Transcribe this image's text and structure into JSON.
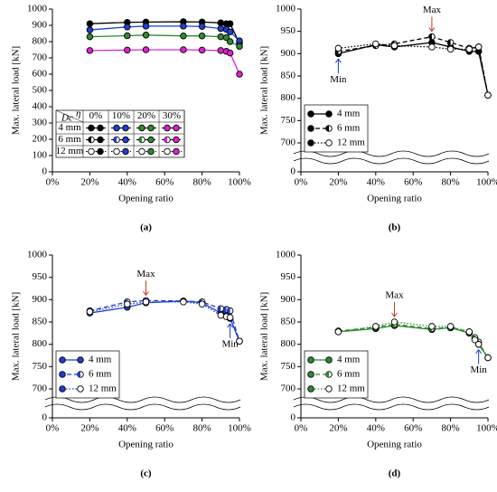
{
  "chart_data": [
    {
      "type": "line",
      "label": "(a)",
      "ylabel": "Max. lateral load [kN]",
      "xlabel": "Opening ratio",
      "xlim": [
        0,
        100
      ],
      "ylim": [
        0,
        1000
      ],
      "xticks": [
        {
          "value": 0,
          "label": "0%"
        },
        {
          "value": 20,
          "label": "20%"
        },
        {
          "value": 40,
          "label": "40%"
        },
        {
          "value": 60,
          "label": "60%"
        },
        {
          "value": 80,
          "label": "80%"
        },
        {
          "value": 100,
          "label": "100%"
        }
      ],
      "yticks": [
        0,
        100,
        200,
        300,
        400,
        500,
        600,
        700,
        800,
        900,
        1000
      ],
      "x": [
        20,
        40,
        50,
        70,
        80,
        90,
        93,
        95,
        100
      ],
      "legend_row_header": "Dc",
      "legend_col_header": "η",
      "legend_rows": [
        {
          "name": "4 mm",
          "dash": "solid",
          "marker": "filled"
        },
        {
          "name": "6 mm",
          "dash": "dashed",
          "marker": "half"
        },
        {
          "name": "12 mm",
          "dash": "dotted",
          "marker": "open"
        }
      ],
      "series": [
        {
          "name": "0%",
          "color": "#000000",
          "dash": "solid",
          "marker": "filled",
          "values": [
            910,
            918,
            920,
            922,
            920,
            915,
            910,
            910,
            790
          ]
        },
        {
          "name": "10%",
          "color": "#1f3fd0",
          "dash": "solid",
          "marker": "filled",
          "values": [
            872,
            890,
            895,
            895,
            893,
            880,
            875,
            860,
            805
          ]
        },
        {
          "name": "20%",
          "color": "#2e8b2e",
          "dash": "solid",
          "marker": "filled",
          "values": [
            830,
            836,
            840,
            835,
            835,
            830,
            825,
            800,
            770
          ]
        },
        {
          "name": "30%",
          "color": "#e020d0",
          "dash": "solid",
          "marker": "filled",
          "values": [
            745,
            748,
            750,
            750,
            748,
            745,
            740,
            730,
            600
          ]
        }
      ]
    },
    {
      "type": "line",
      "label": "(b)",
      "ylabel": "Max. lateral load [kN]",
      "xlabel": "Opening ratio",
      "xlim": [
        0,
        100
      ],
      "ylim": [
        0,
        1000
      ],
      "axis_break": [
        0,
        700
      ],
      "xticks": [
        {
          "value": 0,
          "label": "0%"
        },
        {
          "value": 20,
          "label": "20%"
        },
        {
          "value": 40,
          "label": "40%"
        },
        {
          "value": 60,
          "label": "60%"
        },
        {
          "value": 80,
          "label": "80%"
        },
        {
          "value": 100,
          "label": "100%"
        }
      ],
      "yticks": [
        0,
        700,
        750,
        800,
        850,
        900,
        950,
        1000
      ],
      "x": [
        20,
        40,
        50,
        70,
        80,
        90,
        95,
        100
      ],
      "annotations": [
        {
          "text": "Max",
          "color": "#c0392b",
          "x": 70,
          "y": 938,
          "direction": "down"
        },
        {
          "text": "Min",
          "color": "#1f3fd0",
          "x": 20,
          "y": 900,
          "direction": "up"
        }
      ],
      "series": [
        {
          "name": "4 mm",
          "color": "#000000",
          "dash": "solid",
          "marker": "filled",
          "values": [
            900,
            920,
            915,
            925,
            915,
            905,
            905,
            807
          ]
        },
        {
          "name": "6 mm",
          "color": "#000000",
          "dash": "dashed",
          "marker": "half",
          "values": [
            905,
            918,
            922,
            938,
            925,
            912,
            915,
            807
          ]
        },
        {
          "name": "12 mm",
          "color": "#000000",
          "dash": "dotted",
          "marker": "open",
          "values": [
            912,
            922,
            918,
            915,
            910,
            910,
            915,
            807
          ]
        }
      ]
    },
    {
      "type": "line",
      "label": "(c)",
      "ylabel": "Max. lateral load [kN]",
      "xlabel": "Opening ratio",
      "xlim": [
        0,
        100
      ],
      "ylim": [
        0,
        1000
      ],
      "axis_break": [
        0,
        700
      ],
      "xticks": [
        {
          "value": 0,
          "label": "0%"
        },
        {
          "value": 20,
          "label": "20%"
        },
        {
          "value": 40,
          "label": "40%"
        },
        {
          "value": 60,
          "label": "60%"
        },
        {
          "value": 80,
          "label": "80%"
        },
        {
          "value": 100,
          "label": "100%"
        }
      ],
      "yticks": [
        0,
        700,
        750,
        800,
        850,
        900,
        950,
        1000
      ],
      "x": [
        20,
        40,
        50,
        70,
        80,
        90,
        93,
        95,
        100
      ],
      "annotations": [
        {
          "text": "Max",
          "color": "#c0392b",
          "x": 50,
          "y": 898,
          "direction": "down"
        },
        {
          "text": "Min",
          "color": "#1f3fd0",
          "x": 95,
          "y": 858,
          "direction": "up"
        }
      ],
      "series": [
        {
          "name": "4 mm",
          "color": "#1f3fd0",
          "dash": "solid",
          "marker": "filled",
          "values": [
            870,
            883,
            893,
            897,
            893,
            870,
            865,
            858,
            807
          ]
        },
        {
          "name": "6 mm",
          "color": "#1f3fd0",
          "dash": "dashed",
          "marker": "half",
          "values": [
            875,
            895,
            898,
            897,
            895,
            880,
            878,
            875,
            807
          ]
        },
        {
          "name": "12 mm",
          "color": "#1f3fd0",
          "dash": "dotted",
          "marker": "open",
          "values": [
            873,
            890,
            895,
            895,
            890,
            865,
            862,
            860,
            807
          ]
        }
      ]
    },
    {
      "type": "line",
      "label": "(d)",
      "ylabel": "Max. lateral load [kN]",
      "xlabel": "Opening ratio",
      "xlim": [
        0,
        100
      ],
      "ylim": [
        0,
        1000
      ],
      "axis_break": [
        0,
        700
      ],
      "xticks": [
        {
          "value": 0,
          "label": "0%"
        },
        {
          "value": 20,
          "label": "20%"
        },
        {
          "value": 40,
          "label": "40%"
        },
        {
          "value": 60,
          "label": "60%"
        },
        {
          "value": 80,
          "label": "80%"
        },
        {
          "value": 100,
          "label": "100%"
        }
      ],
      "yticks": [
        0,
        700,
        750,
        800,
        850,
        900,
        950,
        1000
      ],
      "x": [
        20,
        40,
        50,
        70,
        80,
        90,
        93,
        95,
        100
      ],
      "annotations": [
        {
          "text": "Max",
          "color": "#c0392b",
          "x": 50,
          "y": 850,
          "direction": "down"
        },
        {
          "text": "Min",
          "color": "#1f3fd0",
          "x": 95,
          "y": 800,
          "direction": "up"
        }
      ],
      "series": [
        {
          "name": "4 mm",
          "color": "#2e8b2e",
          "dash": "solid",
          "marker": "filled",
          "values": [
            828,
            835,
            842,
            833,
            837,
            825,
            812,
            800,
            770
          ]
        },
        {
          "name": "6 mm",
          "color": "#2e8b2e",
          "dash": "dashed",
          "marker": "half",
          "values": [
            830,
            838,
            845,
            835,
            838,
            828,
            815,
            805,
            770
          ]
        },
        {
          "name": "12 mm",
          "color": "#2e8b2e",
          "dash": "dotted",
          "marker": "open",
          "values": [
            828,
            840,
            850,
            840,
            840,
            828,
            810,
            800,
            770
          ]
        }
      ]
    }
  ]
}
